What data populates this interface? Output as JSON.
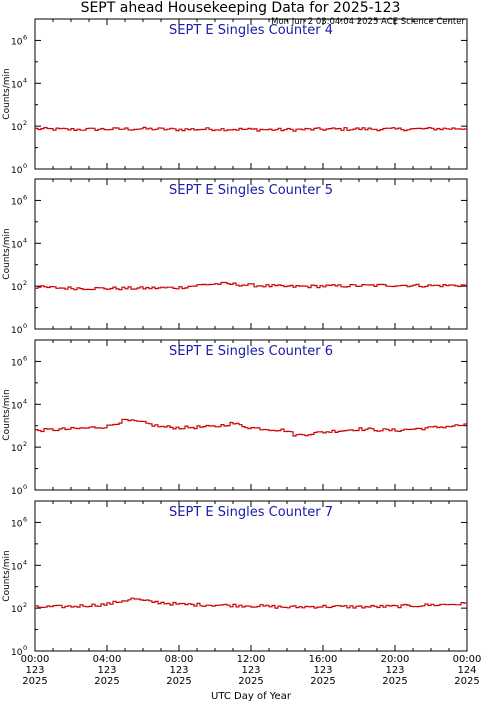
{
  "header": {
    "title": "SEPT ahead Housekeeping Data for 2025-123",
    "timestamp": "Mon Jun  2 03:04:04 2025 ACE Science Center"
  },
  "chart_data": {
    "type": "line",
    "x_axis": {
      "label": "UTC Day of Year",
      "range": [
        0,
        24
      ],
      "ticks": [
        {
          "time": "00:00",
          "day": "123",
          "year": "2025"
        },
        {
          "time": "04:00",
          "day": "123",
          "year": "2025"
        },
        {
          "time": "08:00",
          "day": "123",
          "year": "2025"
        },
        {
          "time": "12:00",
          "day": "123",
          "year": "2025"
        },
        {
          "time": "16:00",
          "day": "123",
          "year": "2025"
        },
        {
          "time": "20:00",
          "day": "123",
          "year": "2025"
        },
        {
          "time": "00:00",
          "day": "124",
          "year": "2025"
        }
      ]
    },
    "y_axis": {
      "label": "Counts/min",
      "scale": "log",
      "range": [
        1,
        10000000
      ],
      "ticks": [
        {
          "base": "10",
          "exp": "0",
          "value": 1
        },
        {
          "base": "10",
          "exp": "2",
          "value": 100
        },
        {
          "base": "10",
          "exp": "4",
          "value": 10000
        },
        {
          "base": "10",
          "exp": "6",
          "value": 1000000
        }
      ]
    },
    "panels": [
      {
        "title": "SEPT E Singles Counter 4",
        "color": "#cc0000",
        "keypoints": [
          [
            0,
            75
          ],
          [
            2,
            70
          ],
          [
            4,
            72
          ],
          [
            6,
            75
          ],
          [
            8,
            70
          ],
          [
            10,
            73
          ],
          [
            12,
            70
          ],
          [
            14,
            68
          ],
          [
            16,
            72
          ],
          [
            18,
            74
          ],
          [
            20,
            72
          ],
          [
            22,
            75
          ],
          [
            24,
            78
          ]
        ]
      },
      {
        "title": "SEPT E Singles Counter 5",
        "color": "#cc0000",
        "keypoints": [
          [
            0,
            90
          ],
          [
            2,
            80
          ],
          [
            4,
            78
          ],
          [
            6,
            80
          ],
          [
            8,
            85
          ],
          [
            9.5,
            120
          ],
          [
            10.5,
            130
          ],
          [
            12,
            110
          ],
          [
            14,
            95
          ],
          [
            16,
            100
          ],
          [
            18,
            105
          ],
          [
            20,
            110
          ],
          [
            22,
            105
          ],
          [
            24,
            110
          ]
        ]
      },
      {
        "title": "SEPT E Singles Counter 6",
        "color": "#cc0000",
        "keypoints": [
          [
            0,
            600
          ],
          [
            2,
            700
          ],
          [
            4,
            900
          ],
          [
            5,
            1800
          ],
          [
            6,
            1400
          ],
          [
            7,
            900
          ],
          [
            8,
            800
          ],
          [
            10,
            900
          ],
          [
            11,
            1300
          ],
          [
            12,
            800
          ],
          [
            14,
            600
          ],
          [
            14.5,
            350
          ],
          [
            16,
            500
          ],
          [
            18,
            700
          ],
          [
            20,
            600
          ],
          [
            22,
            800
          ],
          [
            24,
            1100
          ]
        ]
      },
      {
        "title": "SEPT E Singles Counter 7",
        "color": "#cc0000",
        "keypoints": [
          [
            0,
            110
          ],
          [
            2,
            120
          ],
          [
            4,
            150
          ],
          [
            5,
            230
          ],
          [
            5.5,
            280
          ],
          [
            6,
            220
          ],
          [
            8,
            150
          ],
          [
            10,
            140
          ],
          [
            12,
            130
          ],
          [
            14,
            110
          ],
          [
            16,
            120
          ],
          [
            18,
            115
          ],
          [
            20,
            120
          ],
          [
            22,
            140
          ],
          [
            24,
            160
          ]
        ]
      }
    ]
  }
}
